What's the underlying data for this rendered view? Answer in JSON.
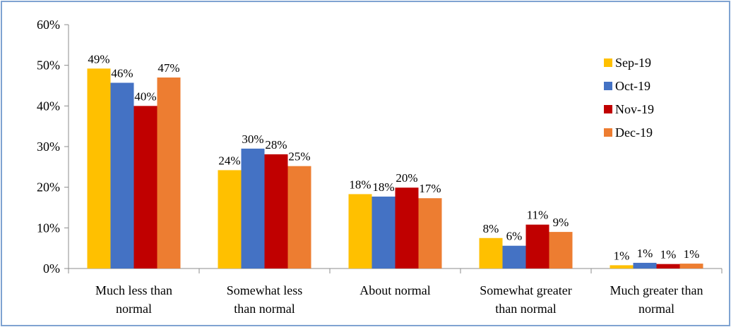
{
  "chart_data": {
    "type": "bar",
    "categories": [
      [
        "Much less than",
        "normal"
      ],
      [
        "Somewhat less",
        "than normal"
      ],
      [
        "About normal"
      ],
      [
        "Somewhat greater",
        "than normal"
      ],
      [
        "Much greater than",
        "normal"
      ]
    ],
    "series": [
      {
        "name": "Sep-19",
        "color": "#ffc000",
        "values": [
          49.2,
          24.2,
          18.3,
          7.5,
          0.8
        ],
        "labels": [
          "49%",
          "24%",
          "18%",
          "8%",
          "1%"
        ]
      },
      {
        "name": "Oct-19",
        "color": "#4472c4",
        "values": [
          45.7,
          29.5,
          17.7,
          5.6,
          1.4
        ],
        "labels": [
          "46%",
          "30%",
          "18%",
          "6%",
          "1%"
        ]
      },
      {
        "name": "Nov-19",
        "color": "#c00000",
        "values": [
          40.0,
          28.1,
          19.9,
          10.8,
          1.1
        ],
        "labels": [
          "40%",
          "28%",
          "20%",
          "11%",
          "1%"
        ]
      },
      {
        "name": "Dec-19",
        "color": "#ed7d31",
        "values": [
          47.0,
          25.2,
          17.3,
          9.0,
          1.2
        ],
        "labels": [
          "47%",
          "25%",
          "17%",
          "9%",
          "1%"
        ]
      }
    ],
    "yticks": [
      "0%",
      "10%",
      "20%",
      "30%",
      "40%",
      "50%",
      "60%"
    ],
    "ylim": [
      0,
      60
    ],
    "grid": false,
    "legend": "right"
  }
}
